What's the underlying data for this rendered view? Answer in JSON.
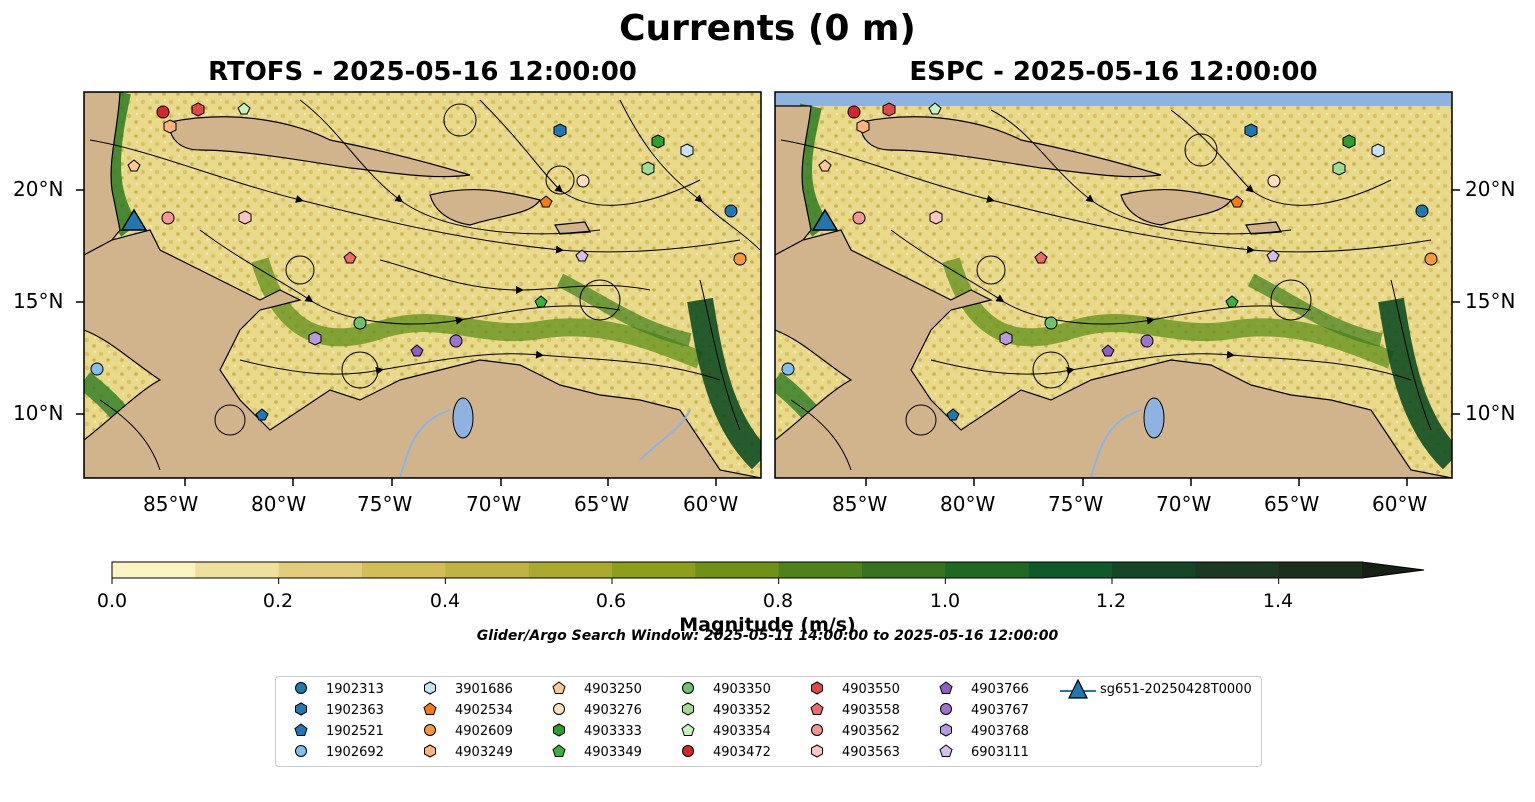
{
  "title": "Currents (0 m)",
  "panels": [
    {
      "title": "RTOFS - 2025-05-16 12:00:00"
    },
    {
      "title": "ESPC - 2025-05-16 12:00:00"
    }
  ],
  "lon_ticks": [
    "85°W",
    "80°W",
    "75°W",
    "70°W",
    "65°W",
    "60°W"
  ],
  "lat_ticks": [
    "20°N",
    "15°N",
    "10°N"
  ],
  "colorbar": {
    "label": "Magnitude (m/s)",
    "ticks": [
      "0.0",
      "0.2",
      "0.4",
      "0.6",
      "0.8",
      "1.0",
      "1.2",
      "1.4"
    ],
    "colors": [
      "#fbf3c0",
      "#efe09c",
      "#e2cd7a",
      "#d3bd58",
      "#c1b343",
      "#aaaa2e",
      "#8c9e1a",
      "#6f9216",
      "#4f8219",
      "#35731e",
      "#1f6923",
      "#0f5a28",
      "#164526",
      "#1c3a21",
      "#1b2f1b",
      "#172015"
    ]
  },
  "search_window": "Glider/Argo Search Window: 2025-05-11 14:00:00 to 2025-05-16 12:00:00",
  "legend": [
    {
      "label": "1902313",
      "shape": "circle",
      "color": "#1f77b4"
    },
    {
      "label": "1902363",
      "shape": "hexagon",
      "color": "#1f77b4"
    },
    {
      "label": "1902521",
      "shape": "pentagon",
      "color": "#1f77b4"
    },
    {
      "label": "1902692",
      "shape": "circle",
      "color": "#7ec0ee"
    },
    {
      "label": "3901686",
      "shape": "hexagon",
      "color": "#c6e3f7"
    },
    {
      "label": "4902534",
      "shape": "pentagon",
      "color": "#f47b0e"
    },
    {
      "label": "4902609",
      "shape": "circle",
      "color": "#f89a3c"
    },
    {
      "label": "4903249",
      "shape": "hexagon",
      "color": "#ffb27a"
    },
    {
      "label": "4903250",
      "shape": "pentagon",
      "color": "#ffc997"
    },
    {
      "label": "4903276",
      "shape": "circle",
      "color": "#ffdfc0"
    },
    {
      "label": "4903333",
      "shape": "hexagon",
      "color": "#2ca02c"
    },
    {
      "label": "4903349",
      "shape": "pentagon",
      "color": "#3bb03b"
    },
    {
      "label": "4903350",
      "shape": "circle",
      "color": "#6cc36c"
    },
    {
      "label": "4903352",
      "shape": "hexagon",
      "color": "#9fdc8f"
    },
    {
      "label": "4903354",
      "shape": "pentagon",
      "color": "#c9f2c0"
    },
    {
      "label": "4903472",
      "shape": "circle",
      "color": "#d62728"
    },
    {
      "label": "4903550",
      "shape": "hexagon",
      "color": "#e04848"
    },
    {
      "label": "4903558",
      "shape": "pentagon",
      "color": "#ef6a6a"
    },
    {
      "label": "4903562",
      "shape": "circle",
      "color": "#f59595"
    },
    {
      "label": "4903563",
      "shape": "hexagon",
      "color": "#fbc5c5"
    },
    {
      "label": "4903766",
      "shape": "pentagon",
      "color": "#8b5fc4"
    },
    {
      "label": "4903767",
      "shape": "circle",
      "color": "#9c74cf"
    },
    {
      "label": "4903768",
      "shape": "hexagon",
      "color": "#b79ae0"
    },
    {
      "label": "6903111",
      "shape": "pentagon",
      "color": "#d3bff2"
    },
    {
      "label": "sg651-20250428T0000",
      "shape": "triangle",
      "color": "#1f77b4"
    }
  ]
}
